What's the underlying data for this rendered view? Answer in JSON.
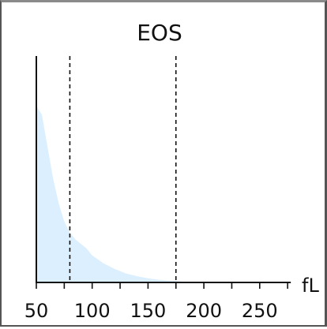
{
  "chart_data": {
    "type": "area",
    "title": "EOS",
    "xlabel": "fL",
    "ylabel": "",
    "xlim": [
      50,
      275
    ],
    "ylim": [
      0,
      1
    ],
    "xticks": [
      50,
      100,
      150,
      200,
      250
    ],
    "xtick_minor_step": 25,
    "grid": false,
    "legend": "none",
    "distribution": {
      "x": [
        50,
        55,
        60,
        65,
        70,
        75,
        80,
        85,
        90,
        95,
        100,
        110,
        120,
        130,
        140,
        150,
        160,
        170,
        180
      ],
      "y": [
        0.78,
        0.74,
        0.6,
        0.46,
        0.35,
        0.27,
        0.22,
        0.19,
        0.17,
        0.15,
        0.12,
        0.085,
        0.06,
        0.04,
        0.028,
        0.018,
        0.012,
        0.008,
        0.005
      ]
    },
    "cutoff_lines": [
      {
        "x": 80,
        "style": "dashed"
      },
      {
        "x": 175,
        "style": "dashed"
      }
    ],
    "left_boundary": {
      "x": 50,
      "style": "solid"
    },
    "colors": {
      "fill": "#dcefff",
      "axis": "#111111",
      "lines": "#111111"
    }
  }
}
